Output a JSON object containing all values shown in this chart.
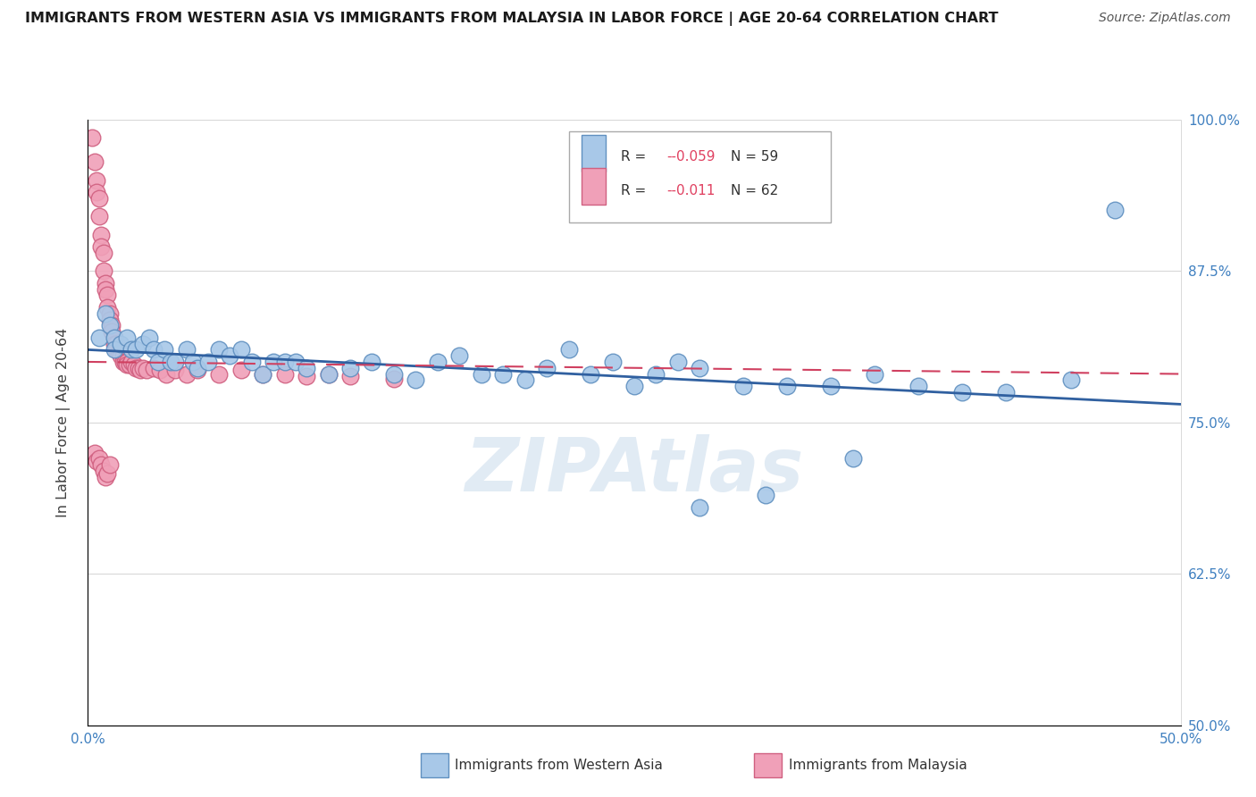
{
  "title": "IMMIGRANTS FROM WESTERN ASIA VS IMMIGRANTS FROM MALAYSIA IN LABOR FORCE | AGE 20-64 CORRELATION CHART",
  "source": "Source: ZipAtlas.com",
  "ylabel": "In Labor Force | Age 20-64",
  "watermark": "ZIPAtlas",
  "legend_blue_label": "Immigrants from Western Asia",
  "legend_pink_label": "Immigrants from Malaysia",
  "R_blue": "-0.059",
  "N_blue": "59",
  "R_pink": "-0.011",
  "N_pink": "62",
  "xlim": [
    0.0,
    0.5
  ],
  "ylim": [
    0.5,
    1.0
  ],
  "xtick_positions": [
    0.0,
    0.125,
    0.25,
    0.375,
    0.5
  ],
  "xticklabels": [
    "0.0%",
    "",
    "",
    "",
    "50.0%"
  ],
  "ytick_positions": [
    0.5,
    0.625,
    0.75,
    0.875,
    1.0
  ],
  "yticklabels": [
    "50.0%",
    "62.5%",
    "75.0%",
    "87.5%",
    "100.0%"
  ],
  "blue_fill": "#a8c8e8",
  "blue_edge": "#6090c0",
  "pink_fill": "#f0a0b8",
  "pink_edge": "#d06080",
  "blue_line_color": "#3060a0",
  "pink_line_color": "#d04060",
  "grid_color": "#d8d8d8",
  "tick_color": "#4080c0",
  "blue_x": [
    0.005,
    0.008,
    0.01,
    0.012,
    0.012,
    0.015,
    0.018,
    0.02,
    0.022,
    0.025,
    0.028,
    0.03,
    0.032,
    0.035,
    0.038,
    0.04,
    0.045,
    0.048,
    0.05,
    0.055,
    0.06,
    0.065,
    0.07,
    0.075,
    0.08,
    0.085,
    0.09,
    0.095,
    0.1,
    0.11,
    0.12,
    0.13,
    0.14,
    0.15,
    0.16,
    0.17,
    0.18,
    0.19,
    0.2,
    0.21,
    0.22,
    0.23,
    0.24,
    0.25,
    0.26,
    0.27,
    0.28,
    0.3,
    0.32,
    0.34,
    0.36,
    0.38,
    0.4,
    0.42,
    0.45,
    0.35,
    0.31,
    0.28,
    0.47
  ],
  "blue_y": [
    0.82,
    0.84,
    0.83,
    0.82,
    0.81,
    0.815,
    0.82,
    0.81,
    0.81,
    0.815,
    0.82,
    0.81,
    0.8,
    0.81,
    0.8,
    0.8,
    0.81,
    0.8,
    0.795,
    0.8,
    0.81,
    0.805,
    0.81,
    0.8,
    0.79,
    0.8,
    0.8,
    0.8,
    0.795,
    0.79,
    0.795,
    0.8,
    0.79,
    0.785,
    0.8,
    0.805,
    0.79,
    0.79,
    0.785,
    0.795,
    0.81,
    0.79,
    0.8,
    0.78,
    0.79,
    0.8,
    0.795,
    0.78,
    0.78,
    0.78,
    0.79,
    0.78,
    0.775,
    0.775,
    0.785,
    0.72,
    0.69,
    0.68,
    0.925
  ],
  "pink_x": [
    0.002,
    0.003,
    0.004,
    0.004,
    0.005,
    0.005,
    0.006,
    0.006,
    0.007,
    0.007,
    0.008,
    0.008,
    0.009,
    0.009,
    0.01,
    0.01,
    0.011,
    0.011,
    0.012,
    0.012,
    0.013,
    0.013,
    0.014,
    0.014,
    0.015,
    0.015,
    0.016,
    0.016,
    0.017,
    0.017,
    0.018,
    0.018,
    0.019,
    0.02,
    0.021,
    0.022,
    0.023,
    0.024,
    0.025,
    0.027,
    0.03,
    0.033,
    0.036,
    0.04,
    0.045,
    0.05,
    0.06,
    0.07,
    0.08,
    0.09,
    0.1,
    0.11,
    0.12,
    0.14,
    0.003,
    0.004,
    0.005,
    0.006,
    0.007,
    0.008,
    0.009,
    0.01
  ],
  "pink_y": [
    0.985,
    0.965,
    0.95,
    0.94,
    0.935,
    0.92,
    0.905,
    0.895,
    0.89,
    0.875,
    0.865,
    0.86,
    0.855,
    0.845,
    0.84,
    0.835,
    0.83,
    0.825,
    0.82,
    0.815,
    0.815,
    0.81,
    0.808,
    0.808,
    0.808,
    0.805,
    0.805,
    0.8,
    0.8,
    0.8,
    0.8,
    0.798,
    0.798,
    0.8,
    0.798,
    0.795,
    0.795,
    0.793,
    0.795,
    0.793,
    0.795,
    0.793,
    0.79,
    0.793,
    0.79,
    0.793,
    0.79,
    0.793,
    0.79,
    0.79,
    0.788,
    0.79,
    0.788,
    0.786,
    0.725,
    0.718,
    0.72,
    0.715,
    0.71,
    0.705,
    0.708,
    0.715
  ],
  "blue_line_x0": 0.0,
  "blue_line_x1": 0.5,
  "blue_line_y0": 0.81,
  "blue_line_y1": 0.765,
  "pink_line_x0": 0.0,
  "pink_line_x1": 0.5,
  "pink_line_y0": 0.8,
  "pink_line_y1": 0.79,
  "figsize": [
    14.06,
    8.92
  ],
  "dpi": 100
}
